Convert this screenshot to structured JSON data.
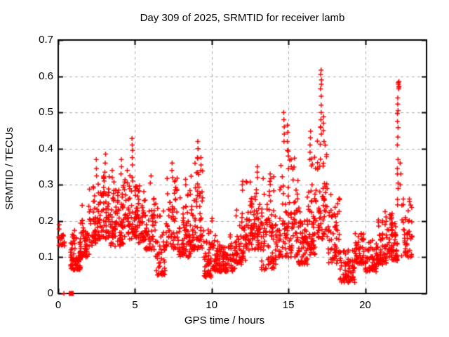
{
  "window": {
    "background": "#ffffff"
  },
  "chart_data": {
    "type": "scatter",
    "title": "Day 309 of 2025, SRMTID for receiver lamb",
    "xlabel": "GPS time / hours",
    "ylabel": "SRMTID / TECUs",
    "xlim": [
      0,
      24
    ],
    "ylim": [
      0,
      0.7
    ],
    "xticks": {
      "values": [
        0,
        5,
        10,
        15,
        20
      ],
      "labels": [
        "0",
        "5",
        "10",
        "15",
        "20"
      ]
    },
    "yticks": {
      "values": [
        0,
        0.1,
        0.2,
        0.3,
        0.4,
        0.5,
        0.6,
        0.7
      ],
      "labels": [
        "0",
        "0.1",
        "0.2",
        "0.3",
        "0.4",
        "0.5",
        "0.6",
        "0.7"
      ]
    },
    "grid": {
      "visible": true,
      "style": "dashed",
      "color": "#ababab"
    },
    "frame_color": "#000000",
    "marker": {
      "glyph": "plus",
      "color": "#ff0000",
      "size": 7
    },
    "legend": null,
    "seed": 309,
    "envelope_segments": [
      {
        "t0": 0.03,
        "t1": 0.25,
        "y_min": 0.125,
        "y_max": 0.19,
        "n": 14
      },
      {
        "t0": 0.3,
        "t1": 0.45,
        "y_min": 0.13,
        "y_max": 0.165,
        "n": 6
      },
      {
        "t0": 0.8,
        "t1": 1.45,
        "y_min": 0.065,
        "y_max": 0.175,
        "n": 70
      },
      {
        "t0": 1.45,
        "t1": 2.0,
        "y_min": 0.1,
        "y_max": 0.245,
        "n": 55
      },
      {
        "t0": 2.0,
        "t1": 2.65,
        "y_min": 0.13,
        "y_max": 0.32,
        "n": 65
      },
      {
        "t0": 2.65,
        "t1": 3.35,
        "y_min": 0.15,
        "y_max": 0.335,
        "n": 75
      },
      {
        "t0": 3.35,
        "t1": 4.3,
        "y_min": 0.13,
        "y_max": 0.31,
        "n": 85
      },
      {
        "t0": 4.3,
        "t1": 5.05,
        "y_min": 0.15,
        "y_max": 0.34,
        "n": 75
      },
      {
        "t0": 5.05,
        "t1": 5.65,
        "y_min": 0.14,
        "y_max": 0.31,
        "n": 60
      },
      {
        "t0": 5.65,
        "t1": 6.35,
        "y_min": 0.12,
        "y_max": 0.29,
        "n": 60
      },
      {
        "t0": 6.35,
        "t1": 7.0,
        "y_min": 0.05,
        "y_max": 0.26,
        "n": 50
      },
      {
        "t0": 7.0,
        "t1": 7.85,
        "y_min": 0.12,
        "y_max": 0.33,
        "n": 65
      },
      {
        "t0": 7.85,
        "t1": 8.65,
        "y_min": 0.1,
        "y_max": 0.31,
        "n": 65
      },
      {
        "t0": 8.65,
        "t1": 9.45,
        "y_min": 0.12,
        "y_max": 0.385,
        "n": 65
      },
      {
        "t0": 9.45,
        "t1": 10.05,
        "y_min": 0.045,
        "y_max": 0.21,
        "n": 50
      },
      {
        "t0": 10.05,
        "t1": 11.55,
        "y_min": 0.06,
        "y_max": 0.165,
        "n": 115
      },
      {
        "t0": 11.55,
        "t1": 12.25,
        "y_min": 0.08,
        "y_max": 0.29,
        "n": 60
      },
      {
        "t0": 12.25,
        "t1": 13.25,
        "y_min": 0.12,
        "y_max": 0.35,
        "n": 85
      },
      {
        "t0": 13.25,
        "t1": 14.25,
        "y_min": 0.065,
        "y_max": 0.33,
        "n": 80
      },
      {
        "t0": 14.25,
        "t1": 15.1,
        "y_min": 0.1,
        "y_max": 0.42,
        "n": 70
      },
      {
        "t0": 15.1,
        "t1": 15.65,
        "y_min": 0.1,
        "y_max": 0.38,
        "n": 50
      },
      {
        "t0": 15.65,
        "t1": 16.35,
        "y_min": 0.08,
        "y_max": 0.28,
        "n": 60
      },
      {
        "t0": 16.35,
        "t1": 16.75,
        "y_min": 0.1,
        "y_max": 0.4,
        "n": 45
      },
      {
        "t0": 16.75,
        "t1": 17.55,
        "y_min": 0.15,
        "y_max": 0.46,
        "n": 70
      },
      {
        "t0": 17.55,
        "t1": 18.35,
        "y_min": 0.08,
        "y_max": 0.3,
        "n": 60
      },
      {
        "t0": 18.35,
        "t1": 19.35,
        "y_min": 0.03,
        "y_max": 0.12,
        "n": 85
      },
      {
        "t0": 19.35,
        "t1": 19.95,
        "y_min": 0.08,
        "y_max": 0.175,
        "n": 50
      },
      {
        "t0": 19.95,
        "t1": 20.75,
        "y_min": 0.06,
        "y_max": 0.15,
        "n": 60
      },
      {
        "t0": 20.75,
        "t1": 21.65,
        "y_min": 0.08,
        "y_max": 0.235,
        "n": 70
      },
      {
        "t0": 21.65,
        "t1": 22.1,
        "y_min": 0.09,
        "y_max": 0.23,
        "n": 55
      },
      {
        "t0": 22.35,
        "t1": 23.1,
        "y_min": 0.1,
        "y_max": 0.3,
        "n": 50
      }
    ],
    "spike_columns": [
      {
        "t": 2.47,
        "ys": [
          0.325,
          0.345,
          0.37
        ]
      },
      {
        "t": 3.06,
        "ys": [
          0.335,
          0.36,
          0.385
        ]
      },
      {
        "t": 3.52,
        "ys": [
          0.32,
          0.34
        ]
      },
      {
        "t": 4.1,
        "ys": [
          0.33,
          0.35,
          0.37
        ]
      },
      {
        "t": 4.82,
        "ys": [
          0.355,
          0.375,
          0.395,
          0.41,
          0.428
        ]
      },
      {
        "t": 6.02,
        "ys": [
          0.305,
          0.325
        ]
      },
      {
        "t": 7.42,
        "ys": [
          0.32,
          0.34,
          0.36
        ]
      },
      {
        "t": 8.32,
        "ys": [
          0.3,
          0.315
        ]
      },
      {
        "t": 9.08,
        "ys": [
          0.375,
          0.4,
          0.42
        ]
      },
      {
        "t": 9.28,
        "ys": [
          0.34,
          0.355,
          0.375
        ]
      },
      {
        "t": 12.02,
        "ys": [
          0.285,
          0.3,
          0.31
        ]
      },
      {
        "t": 12.98,
        "ys": [
          0.32,
          0.335,
          0.35
        ]
      },
      {
        "t": 13.78,
        "ys": [
          0.31,
          0.33
        ]
      },
      {
        "t": 14.72,
        "ys": [
          0.42,
          0.44,
          0.46,
          0.48,
          0.5
        ]
      },
      {
        "t": 14.95,
        "ys": [
          0.395,
          0.42,
          0.445,
          0.465
        ]
      },
      {
        "t": 15.18,
        "ys": [
          0.35,
          0.37
        ]
      },
      {
        "t": 16.42,
        "ys": [
          0.37,
          0.39,
          0.41,
          0.43,
          0.448
        ]
      },
      {
        "t": 17.12,
        "ys": [
          0.44,
          0.46,
          0.48,
          0.5,
          0.52,
          0.545,
          0.565,
          0.578,
          0.59,
          0.605,
          0.617
        ]
      },
      {
        "t": 17.3,
        "ys": [
          0.42,
          0.45,
          0.47,
          0.488
        ]
      },
      {
        "t": 22.12,
        "ys": [
          0.245,
          0.26,
          0.29,
          0.305,
          0.33,
          0.345,
          0.37,
          0.41,
          0.432,
          0.458,
          0.475,
          0.497,
          0.505,
          0.523,
          0.54
        ]
      },
      {
        "t": 22.18,
        "ys": [
          0.565,
          0.572,
          0.578,
          0.582,
          0.585,
          0.57
        ]
      },
      {
        "t": 22.3,
        "ys": [
          0.3,
          0.33,
          0.36
        ]
      }
    ],
    "special_points": [
      {
        "t": 0.37,
        "y": 0,
        "marker": "plus"
      },
      {
        "t": 0.85,
        "y": 0,
        "marker": "square"
      }
    ]
  }
}
